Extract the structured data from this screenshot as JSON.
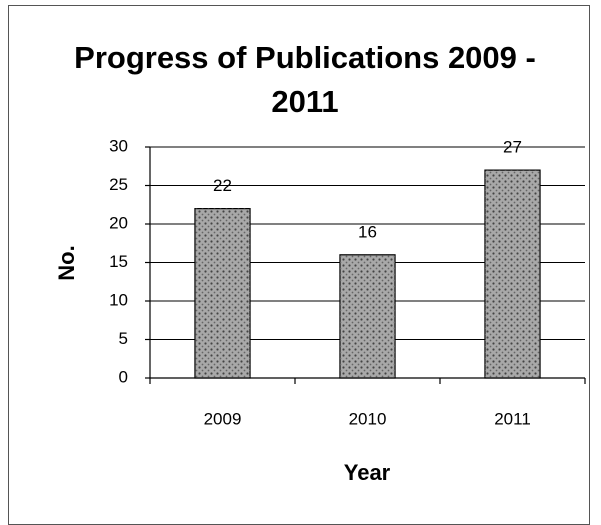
{
  "chart_data": {
    "type": "bar",
    "title": "Progress of Publications 2009 - 2011",
    "categories": [
      "2009",
      "2010",
      "2011"
    ],
    "values": [
      22,
      16,
      27
    ],
    "color": "#a8a8a8",
    "ylim": [
      0,
      30
    ],
    "yticks": [
      0,
      5,
      10,
      15,
      20,
      25,
      30
    ],
    "grid": true,
    "x_label": "Year",
    "y_label": "No."
  }
}
